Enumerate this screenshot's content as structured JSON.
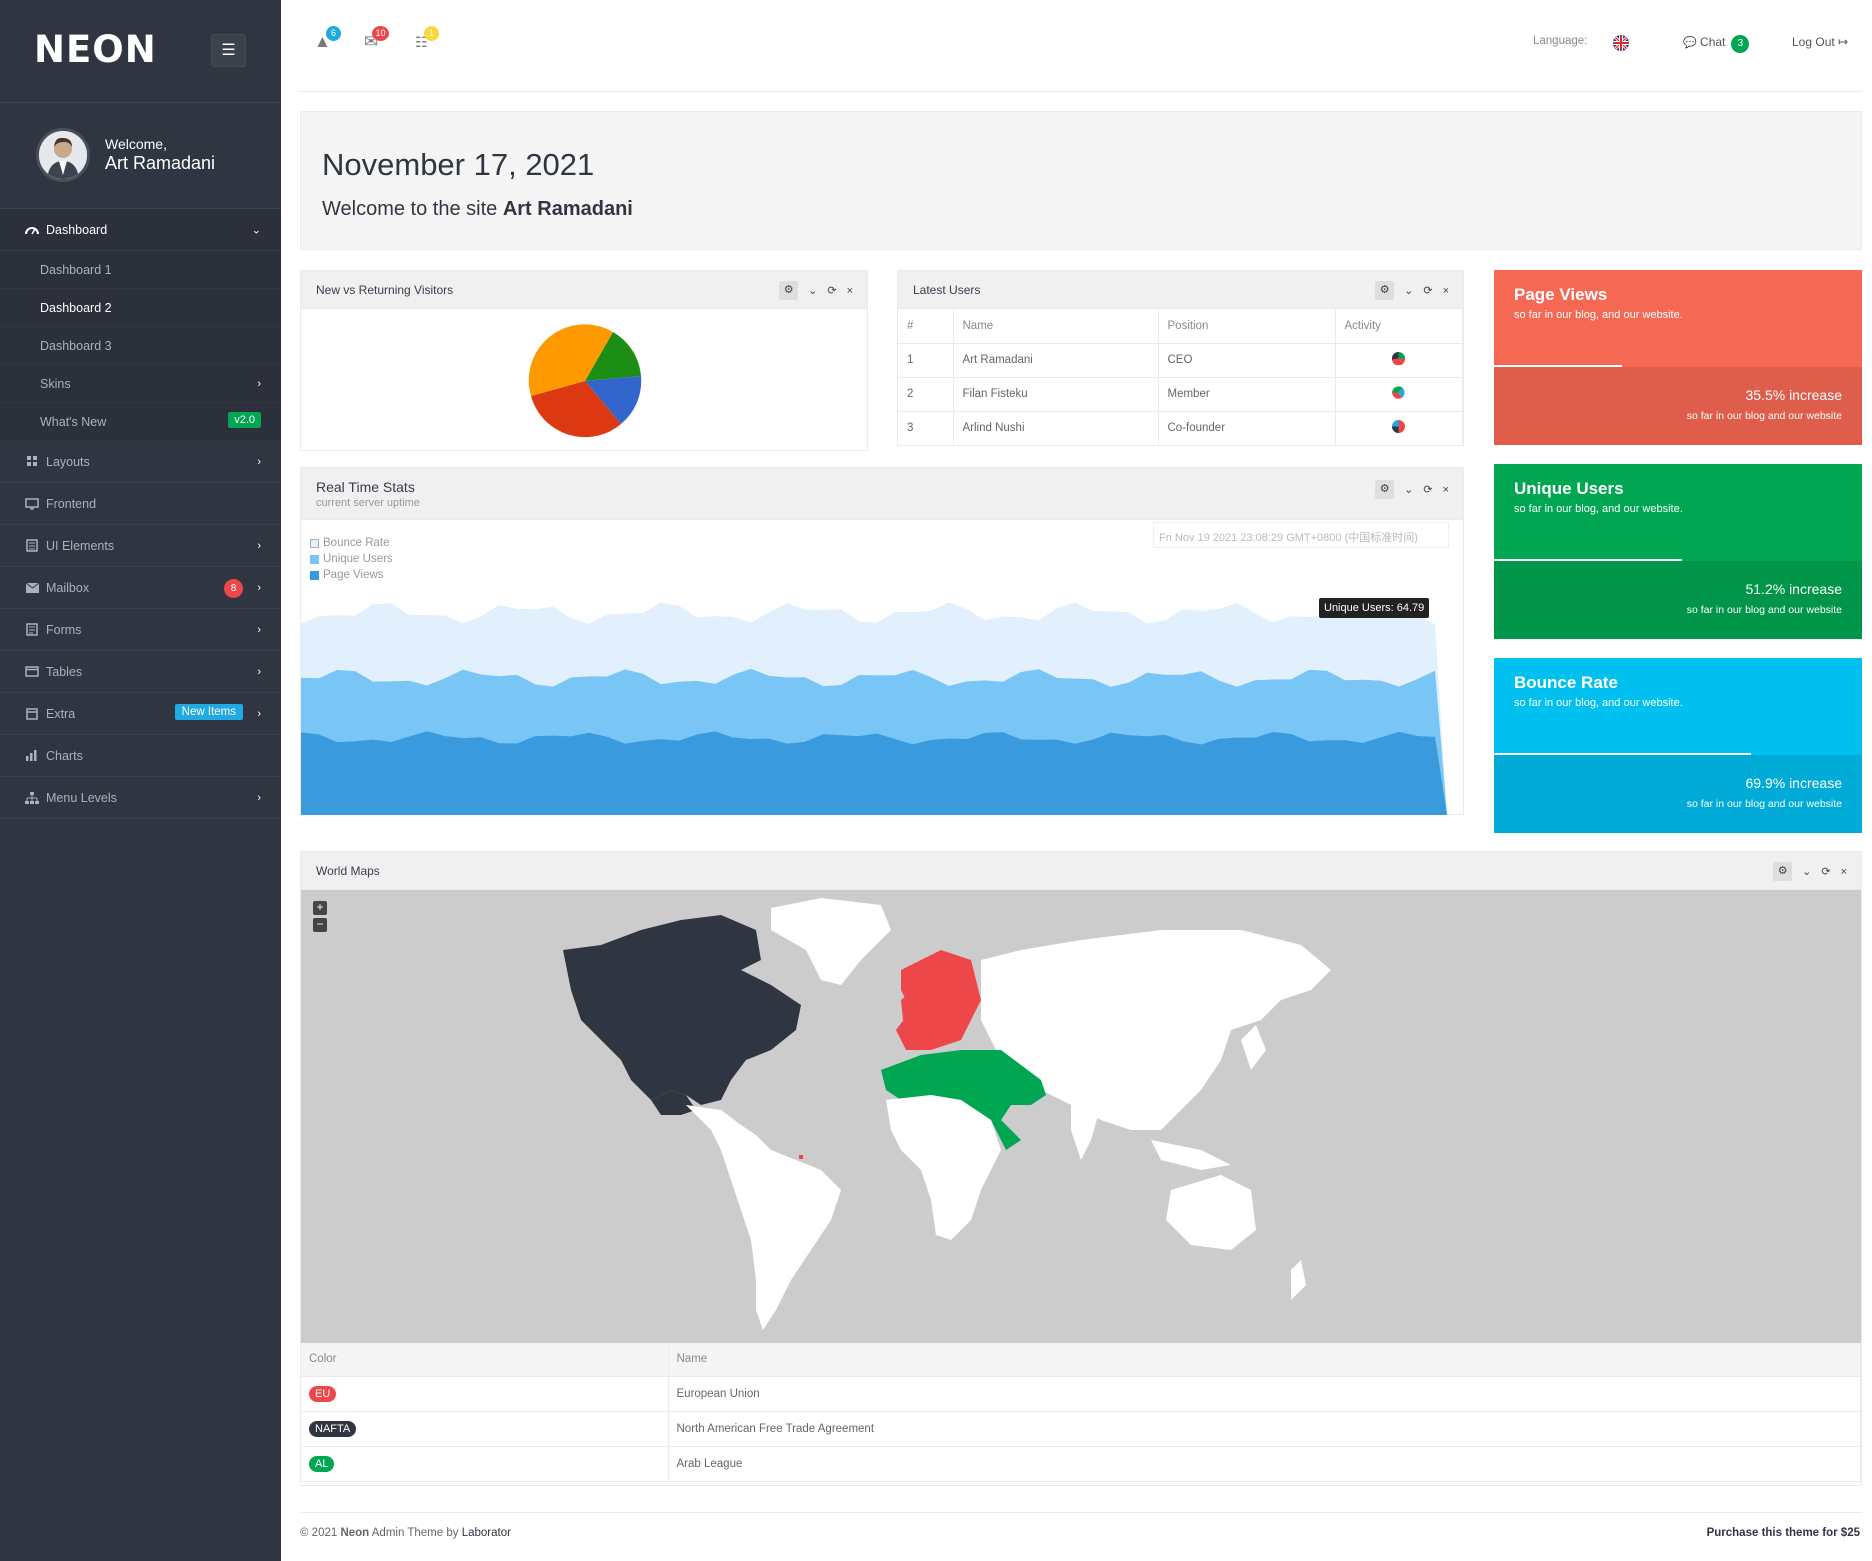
{
  "brand": {
    "logo": "NEON",
    "menu_icon": "hamburger-icon"
  },
  "user": {
    "welcome": "Welcome,",
    "name": "Art Ramadani"
  },
  "sidebar": {
    "items": [
      {
        "label": "Dashboard",
        "icon": "gauge-icon"
      },
      {
        "label": "Dashboard 1"
      },
      {
        "label": "Dashboard 2"
      },
      {
        "label": "Dashboard 3"
      },
      {
        "label": "Skins"
      },
      {
        "label": "What's New",
        "badge": "v2.0"
      },
      {
        "label": "Layouts",
        "icon": "grid-icon"
      },
      {
        "label": "Frontend",
        "icon": "monitor-icon"
      },
      {
        "label": "UI Elements",
        "icon": "notebook-icon"
      },
      {
        "label": "Mailbox",
        "icon": "mail-icon",
        "badge": "8"
      },
      {
        "label": "Forms",
        "icon": "form-icon"
      },
      {
        "label": "Tables",
        "icon": "window-icon"
      },
      {
        "label": "Extra",
        "icon": "inbox-icon",
        "badge": "New Items"
      },
      {
        "label": "Charts",
        "icon": "bar-chart-icon"
      },
      {
        "label": "Menu Levels",
        "icon": "sitemap-icon"
      }
    ]
  },
  "topbar": {
    "notifications": [
      {
        "icon": "warning-icon",
        "count": "6",
        "color": "#21a9e1"
      },
      {
        "icon": "envelope-icon",
        "count": "10",
        "color": "#ee4749"
      },
      {
        "icon": "list-icon",
        "count": "1",
        "color": "#fad839"
      }
    ],
    "language_label": "Language:",
    "chat_label": "Chat",
    "chat_count": "3",
    "logout_label": "Log Out"
  },
  "hero": {
    "date": "November 17, 2021",
    "welcome_prefix": "Welcome to the site ",
    "welcome_name": "Art Ramadani"
  },
  "visitors_panel": {
    "title": "New vs Returning Visitors"
  },
  "latest_users": {
    "title": "Latest Users",
    "columns": [
      "#",
      "Name",
      "Position",
      "Activity"
    ],
    "rows": [
      {
        "num": "1",
        "name": "Art Ramadani",
        "position": "CEO"
      },
      {
        "num": "2",
        "name": "Filan Fisteku",
        "position": "Member"
      },
      {
        "num": "3",
        "name": "Arlind Nushi",
        "position": "Co-founder"
      }
    ]
  },
  "realtime": {
    "title": "Real Time Stats",
    "subtitle": "current server uptime",
    "timestamp": "Fri Nov 19 2021 23:08:29 GMT+0800 (中国标准时间)",
    "legend": [
      "Bounce Rate",
      "Unique Users",
      "Page Views"
    ],
    "tooltip": "Unique Users: 64.79"
  },
  "tiles": [
    {
      "title": "Page Views",
      "sub": "so far in our blog, and our website.",
      "increase": "35.5% increase",
      "note": "so far in our blog and our website",
      "color": "#f56954",
      "dark": "#de5e4b"
    },
    {
      "title": "Unique Users",
      "sub": "so far in our blog, and our website.",
      "increase": "51.2% increase",
      "note": "so far in our blog and our website",
      "color": "#00a651",
      "dark": "#009549"
    },
    {
      "title": "Bounce Rate",
      "sub": "so far in our blog, and our website.",
      "increase": "69.9% increase",
      "note": "so far in our blog and our website",
      "color": "#00c0ef",
      "dark": "#00acd7"
    }
  ],
  "world": {
    "title": "World Maps",
    "columns": [
      "Color",
      "Name"
    ],
    "rows": [
      {
        "code": "EU",
        "name": "European Union",
        "color": "#ee4749"
      },
      {
        "code": "NAFTA",
        "name": "North American Free Trade Agreement",
        "color": "#303641"
      },
      {
        "code": "AL",
        "name": "Arab League",
        "color": "#00a651"
      }
    ]
  },
  "footer": {
    "copyright": "© 2021 ",
    "brand": "Neon",
    "theme": " Admin Theme by ",
    "author": "Laborator",
    "purchase": "Purchase this theme for $25"
  }
}
